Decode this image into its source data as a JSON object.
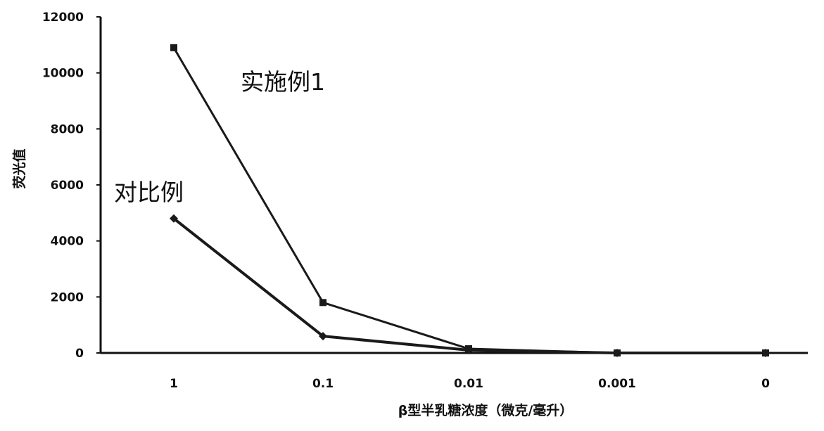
{
  "chart_data": {
    "type": "line",
    "categories": [
      "1",
      "0.1",
      "0.01",
      "0.001",
      "0"
    ],
    "ylabel": "荧光值",
    "xlabel": "β型半乳糖浓度（微克/毫升）",
    "ylim": [
      0,
      12000
    ],
    "yticks": [
      "0",
      "2000",
      "4000",
      "6000",
      "8000",
      "10000",
      "12000"
    ],
    "grid": false,
    "series": [
      {
        "name": "实施例1",
        "marker": "square",
        "values": [
          10900,
          1800,
          150,
          0,
          0
        ]
      },
      {
        "name": "对比例",
        "marker": "diamond",
        "values": [
          4800,
          600,
          100,
          0,
          0
        ]
      }
    ],
    "colors": {
      "line": "#1a1a1a",
      "axis": "#111111",
      "background": "#ffffff"
    }
  }
}
